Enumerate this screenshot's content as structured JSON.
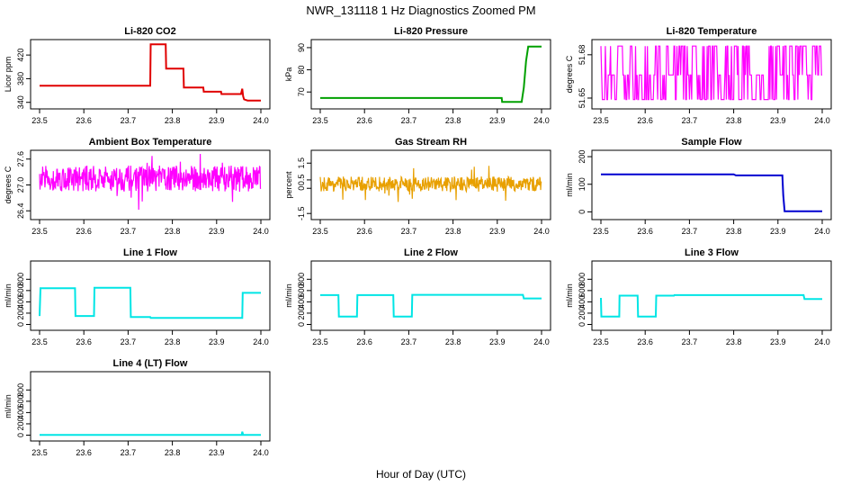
{
  "figure": {
    "title": "NWR_131118  1 Hz Diagnostics Zoomed PM",
    "xlabel": "Hour of Day (UTC)"
  },
  "chart_data": [
    {
      "type": "line",
      "title": "Li-820 CO2",
      "ylabel": "Licor ppm",
      "color": "#e00000",
      "xlim": [
        23.5,
        24.0
      ],
      "ylim": [
        335,
        440
      ],
      "xticks": [
        "23.5",
        "23.6",
        "23.7",
        "23.8",
        "23.9",
        "24.0"
      ],
      "yticks": [
        {
          "v": 340,
          "t": "340"
        },
        {
          "v": 380,
          "t": "380"
        },
        {
          "v": 420,
          "t": "420"
        }
      ],
      "x": [
        23.5,
        23.75,
        23.751,
        23.785,
        23.786,
        23.825,
        23.826,
        23.87,
        23.871,
        23.91,
        23.911,
        23.955,
        23.958,
        23.96,
        23.962,
        23.97,
        24.0
      ],
      "y": [
        368,
        368,
        438,
        438,
        397,
        397,
        365,
        365,
        358,
        358,
        354,
        354,
        363,
        350,
        345,
        343,
        343
      ]
    },
    {
      "type": "line",
      "title": "Li-820 Pressure",
      "ylabel": "kPa",
      "color": "#00a000",
      "xlim": [
        23.5,
        24.0
      ],
      "ylim": [
        64,
        92
      ],
      "xticks": [
        "23.5",
        "23.6",
        "23.7",
        "23.8",
        "23.9",
        "24.0"
      ],
      "yticks": [
        {
          "v": 70,
          "t": "70"
        },
        {
          "v": 80,
          "t": "80"
        },
        {
          "v": 90,
          "t": "90"
        }
      ],
      "x": [
        23.5,
        23.91,
        23.911,
        23.955,
        23.96,
        23.965,
        23.97,
        24.0
      ],
      "y": [
        67.3,
        67.3,
        65.5,
        65.5,
        72,
        84,
        90.5,
        90.5
      ]
    },
    {
      "type": "line",
      "title": "Li-820 Temperature",
      "ylabel": "degrees C",
      "color": "#ff00ff",
      "xlim": [
        23.5,
        24.0
      ],
      "ylim": [
        51.645,
        51.688
      ],
      "xticks": [
        "23.5",
        "23.6",
        "23.7",
        "23.8",
        "23.9",
        "24.0"
      ],
      "yticks": [
        {
          "v": 51.65,
          "t": "51.65"
        },
        {
          "v": 51.68,
          "t": "51.68"
        }
      ],
      "levels": [
        51.649,
        51.666,
        51.686
      ]
    },
    {
      "type": "line",
      "title": "Ambient Box Temperature",
      "ylabel": "degrees C",
      "color": "#ff00ff",
      "xlim": [
        23.5,
        24.0
      ],
      "ylim": [
        26.28,
        27.72
      ],
      "xticks": [
        "23.5",
        "23.6",
        "23.7",
        "23.8",
        "23.9",
        "24.0"
      ],
      "yticks": [
        {
          "v": 26.4,
          "t": "26.4"
        },
        {
          "v": 27.0,
          "t": "27.0"
        },
        {
          "v": 27.6,
          "t": "27.6"
        }
      ],
      "center": 27.15,
      "spread": 0.3
    },
    {
      "type": "line",
      "title": "Gas Stream RH",
      "ylabel": "percent",
      "color": "#e8a000",
      "xlim": [
        23.5,
        24.0
      ],
      "ylim": [
        -1.65,
        2.05
      ],
      "xticks": [
        "23.5",
        "23.6",
        "23.7",
        "23.8",
        "23.9",
        "24.0"
      ],
      "yticks": [
        {
          "v": -1.5,
          "t": "-1.5"
        },
        {
          "v": 0,
          "t": "0"
        },
        {
          "v": 0.5,
          "t": "0.5"
        },
        {
          "v": 1.5,
          "t": "1.5"
        }
      ],
      "center": 0.25,
      "spread": 0.45
    },
    {
      "type": "line",
      "title": "Sample Flow",
      "ylabel": "ml/min",
      "color": "#0000d0",
      "xlim": [
        23.5,
        24.0
      ],
      "ylim": [
        -15,
        210
      ],
      "xticks": [
        "23.5",
        "23.6",
        "23.7",
        "23.8",
        "23.9",
        "24.0"
      ],
      "yticks": [
        {
          "v": 0,
          "t": "0"
        },
        {
          "v": 100,
          "t": "100"
        },
        {
          "v": 200,
          "t": "200"
        }
      ],
      "x": [
        23.5,
        23.8,
        23.805,
        23.91,
        23.912,
        23.915,
        24.0
      ],
      "y": [
        136,
        136,
        132,
        132,
        60,
        2,
        2
      ]
    },
    {
      "type": "line",
      "title": "Line 1 Flow",
      "ylabel": "ml/min",
      "color": "#00e5e5",
      "xlim": [
        23.5,
        24.0
      ],
      "ylim": [
        -40,
        1060
      ],
      "xticks": [
        "23.5",
        "23.6",
        "23.7",
        "23.8",
        "23.9",
        "24.0"
      ],
      "yticks": [
        {
          "v": 0,
          "t": "0"
        },
        {
          "v": 200,
          "t": "200"
        },
        {
          "v": 400,
          "t": "400"
        },
        {
          "v": 600,
          "t": "600"
        },
        {
          "v": 800,
          "t": "800"
        }
      ],
      "x": [
        23.5,
        23.502,
        23.504,
        23.58,
        23.581,
        23.623,
        23.624,
        23.705,
        23.706,
        23.75,
        23.751,
        23.958,
        23.959,
        24.0
      ],
      "y": [
        150,
        640,
        640,
        640,
        150,
        150,
        650,
        650,
        130,
        130,
        115,
        115,
        560,
        560
      ]
    },
    {
      "type": "line",
      "title": "Line 2 Flow",
      "ylabel": "ml/min",
      "color": "#00e5e5",
      "xlim": [
        23.5,
        24.0
      ],
      "ylim": [
        -40,
        1060
      ],
      "xticks": [
        "23.5",
        "23.6",
        "23.7",
        "23.8",
        "23.9",
        "24.0"
      ],
      "yticks": [
        {
          "v": 0,
          "t": "0"
        },
        {
          "v": 200,
          "t": "200"
        },
        {
          "v": 400,
          "t": "400"
        },
        {
          "v": 600,
          "t": "600"
        },
        {
          "v": 800,
          "t": "800"
        }
      ],
      "x": [
        23.5,
        23.541,
        23.542,
        23.583,
        23.584,
        23.665,
        23.666,
        23.707,
        23.708,
        23.958,
        23.96,
        24.0
      ],
      "y": [
        520,
        520,
        140,
        140,
        520,
        520,
        140,
        140,
        525,
        525,
        460,
        460
      ]
    },
    {
      "type": "line",
      "title": "Line 3 Flow",
      "ylabel": "ml/min",
      "color": "#00e5e5",
      "xlim": [
        23.5,
        24.0
      ],
      "ylim": [
        -40,
        1060
      ],
      "xticks": [
        "23.5",
        "23.6",
        "23.7",
        "23.8",
        "23.9",
        "24.0"
      ],
      "yticks": [
        {
          "v": 0,
          "t": "0"
        },
        {
          "v": 200,
          "t": "200"
        },
        {
          "v": 400,
          "t": "400"
        },
        {
          "v": 600,
          "t": "600"
        },
        {
          "v": 800,
          "t": "800"
        }
      ],
      "x": [
        23.5,
        23.501,
        23.502,
        23.5415,
        23.542,
        23.583,
        23.584,
        23.624,
        23.625,
        23.665,
        23.666,
        23.958,
        23.96,
        24.0
      ],
      "y": [
        470,
        140,
        140,
        140,
        510,
        510,
        140,
        140,
        510,
        510,
        520,
        520,
        450,
        450
      ]
    },
    {
      "type": "line",
      "title": "Line 4 (LT) Flow",
      "ylabel": "ml/min",
      "color": "#00e5e5",
      "xlim": [
        23.5,
        24.0
      ],
      "ylim": [
        -40,
        1060
      ],
      "xticks": [
        "23.5",
        "23.6",
        "23.7",
        "23.8",
        "23.9",
        "24.0"
      ],
      "yticks": [
        {
          "v": 0,
          "t": "0"
        },
        {
          "v": 200,
          "t": "200"
        },
        {
          "v": 400,
          "t": "400"
        },
        {
          "v": 600,
          "t": "600"
        },
        {
          "v": 800,
          "t": "800"
        }
      ],
      "x": [
        23.5,
        23.957,
        23.958,
        23.96,
        23.962,
        24.0
      ],
      "y": [
        5,
        5,
        60,
        5,
        5,
        5
      ]
    }
  ]
}
